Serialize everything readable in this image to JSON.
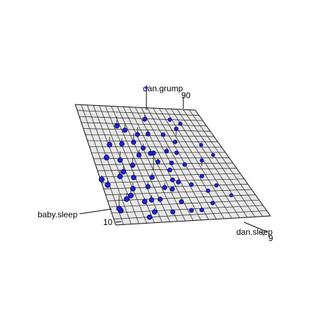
{
  "chart_data": {
    "type": "scatter",
    "subtype": "3d-scatter-with-regression-plane",
    "title": "",
    "zlabel": "dan.grump",
    "xlabel": "baby.sleep",
    "ylabel": "dan.sleep",
    "xtick": "10",
    "ztick": "90",
    "ytick": "9",
    "colors": {
      "point_fill": "#2222cc",
      "point_stroke": "#00006e",
      "plane_fill": "#e8e8e8",
      "grid_line": "#1a1a1a",
      "residual_line": "#333333",
      "axis": "#000000"
    },
    "points": [
      {
        "x": 7.3,
        "y": 8.2,
        "z": 58
      },
      {
        "x": 5.2,
        "y": 4.5,
        "z": 70
      },
      {
        "x": 9.8,
        "y": 7.9,
        "z": 62
      },
      {
        "x": 4.1,
        "y": 5.6,
        "z": 71
      },
      {
        "x": 6.8,
        "y": 6.1,
        "z": 66
      },
      {
        "x": 8.5,
        "y": 5.2,
        "z": 69
      },
      {
        "x": 10.2,
        "y": 6.8,
        "z": 60
      },
      {
        "x": 5.9,
        "y": 7.4,
        "z": 58
      },
      {
        "x": 7.1,
        "y": 4.9,
        "z": 74
      },
      {
        "x": 4.8,
        "y": 8.6,
        "z": 49
      },
      {
        "x": 9.1,
        "y": 6.3,
        "z": 64
      },
      {
        "x": 6.2,
        "y": 5.8,
        "z": 67
      },
      {
        "x": 8.8,
        "y": 7.2,
        "z": 57
      },
      {
        "x": 3.9,
        "y": 6.9,
        "z": 62
      },
      {
        "x": 11.0,
        "y": 8.0,
        "z": 55
      },
      {
        "x": 5.5,
        "y": 5.0,
        "z": 75
      },
      {
        "x": 7.9,
        "y": 6.6,
        "z": 63
      },
      {
        "x": 6.5,
        "y": 4.3,
        "z": 79
      },
      {
        "x": 10.6,
        "y": 5.9,
        "z": 66
      },
      {
        "x": 4.4,
        "y": 7.8,
        "z": 54
      },
      {
        "x": 8.1,
        "y": 8.9,
        "z": 47
      },
      {
        "x": 6.0,
        "y": 6.4,
        "z": 63
      },
      {
        "x": 9.5,
        "y": 5.5,
        "z": 70
      },
      {
        "x": 5.0,
        "y": 6.0,
        "z": 68
      },
      {
        "x": 7.6,
        "y": 7.6,
        "z": 55
      },
      {
        "x": 3.5,
        "y": 5.3,
        "z": 77
      },
      {
        "x": 11.4,
        "y": 7.0,
        "z": 58
      },
      {
        "x": 6.9,
        "y": 5.4,
        "z": 71
      },
      {
        "x": 8.3,
        "y": 4.6,
        "z": 80
      },
      {
        "x": 5.7,
        "y": 8.3,
        "z": 51
      },
      {
        "x": 9.9,
        "y": 6.1,
        "z": 61
      },
      {
        "x": 4.6,
        "y": 6.7,
        "z": 64
      },
      {
        "x": 7.4,
        "y": 5.1,
        "z": 73
      },
      {
        "x": 6.3,
        "y": 7.0,
        "z": 59
      },
      {
        "x": 10.8,
        "y": 8.4,
        "z": 50
      },
      {
        "x": 5.3,
        "y": 4.8,
        "z": 76
      },
      {
        "x": 8.7,
        "y": 6.5,
        "z": 62
      },
      {
        "x": 4.0,
        "y": 7.3,
        "z": 57
      },
      {
        "x": 7.0,
        "y": 6.2,
        "z": 89
      },
      {
        "x": 9.3,
        "y": 7.7,
        "z": 56
      },
      {
        "x": 6.6,
        "y": 8.0,
        "z": 52
      },
      {
        "x": 5.1,
        "y": 5.7,
        "z": 69
      },
      {
        "x": 8.0,
        "y": 5.6,
        "z": 67
      },
      {
        "x": 10.4,
        "y": 6.4,
        "z": 60
      },
      {
        "x": 4.3,
        "y": 4.4,
        "z": 82
      },
      {
        "x": 7.7,
        "y": 7.1,
        "z": 60
      },
      {
        "x": 6.1,
        "y": 5.2,
        "z": 72
      },
      {
        "x": 9.0,
        "y": 8.7,
        "z": 48
      },
      {
        "x": 5.6,
        "y": 6.6,
        "z": 65
      },
      {
        "x": 8.4,
        "y": 7.5,
        "z": 58
      },
      {
        "x": 3.8,
        "y": 6.2,
        "z": 69
      },
      {
        "x": 11.2,
        "y": 5.7,
        "z": 64
      },
      {
        "x": 6.7,
        "y": 4.1,
        "z": 84
      },
      {
        "x": 7.2,
        "y": 6.9,
        "z": 61
      },
      {
        "x": 9.6,
        "y": 5.0,
        "z": 72
      },
      {
        "x": 5.4,
        "y": 7.9,
        "z": 53
      },
      {
        "x": 8.6,
        "y": 6.0,
        "z": 66
      },
      {
        "x": 4.9,
        "y": 5.4,
        "z": 73
      },
      {
        "x": 10.0,
        "y": 7.4,
        "z": 57
      },
      {
        "x": 6.4,
        "y": 6.8,
        "z": 62
      }
    ],
    "plane": {
      "intercept": 125.0,
      "coef_x": 0.0,
      "coef_y": -8.9
    }
  },
  "labels": {
    "xlabel": "baby.sleep",
    "ylabel": "dan.sleep",
    "zlabel": "dan.grump",
    "xtick": "10",
    "ytick": "9",
    "ztick": "90"
  }
}
